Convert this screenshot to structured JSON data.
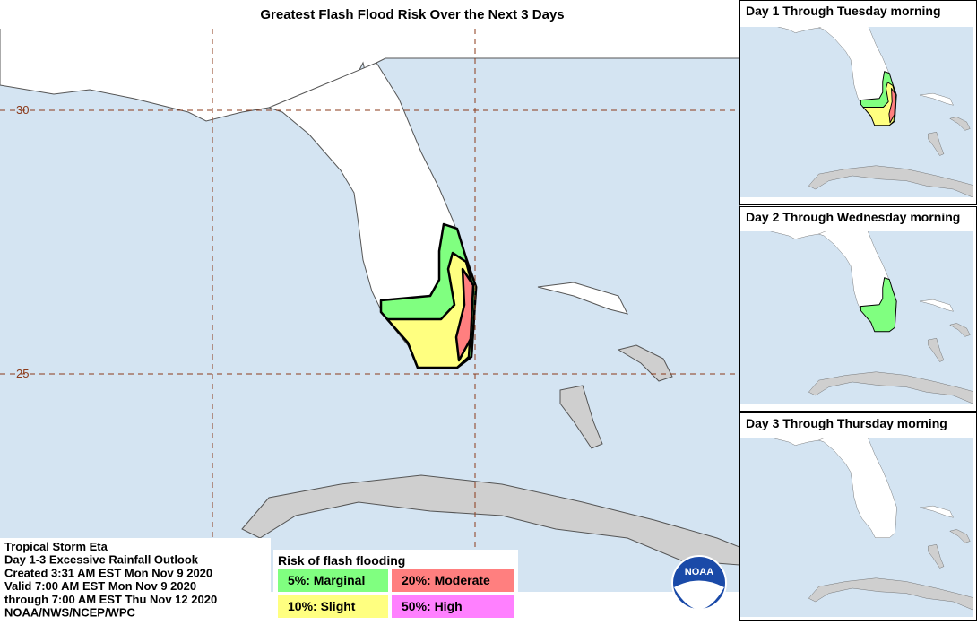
{
  "main_map": {
    "title": "Greatest Flash Flood Risk Over the Next 3 Days",
    "latitude_labels": [
      "30",
      "25"
    ]
  },
  "info": {
    "lines": [
      "Tropical Storm Eta",
      "Day 1-3 Excessive Rainfall Outlook",
      "Created 3:31 AM EST Mon Nov 9 2020",
      "Valid 7:00 AM EST Mon Nov 9 2020",
      "through 7:00 AM EST Thu Nov 12 2020",
      "NOAA/NWS/NCEP/WPC"
    ]
  },
  "legend": {
    "title": "Risk of flash flooding",
    "items": [
      {
        "label": "5%: Marginal",
        "color": "#80ff80"
      },
      {
        "label": "20%: Moderate",
        "color": "#ff7f7f"
      },
      {
        "label": "10%: Slight",
        "color": "#ffff80"
      },
      {
        "label": "50%: High",
        "color": "#ff80ff"
      }
    ]
  },
  "panels": [
    {
      "title": "Day 1 Through Tuesday morning"
    },
    {
      "title": "Day 2 Through Wednesday morning"
    },
    {
      "title": "Day 3 Through Thursday morning"
    }
  ],
  "logo": "NOAA"
}
